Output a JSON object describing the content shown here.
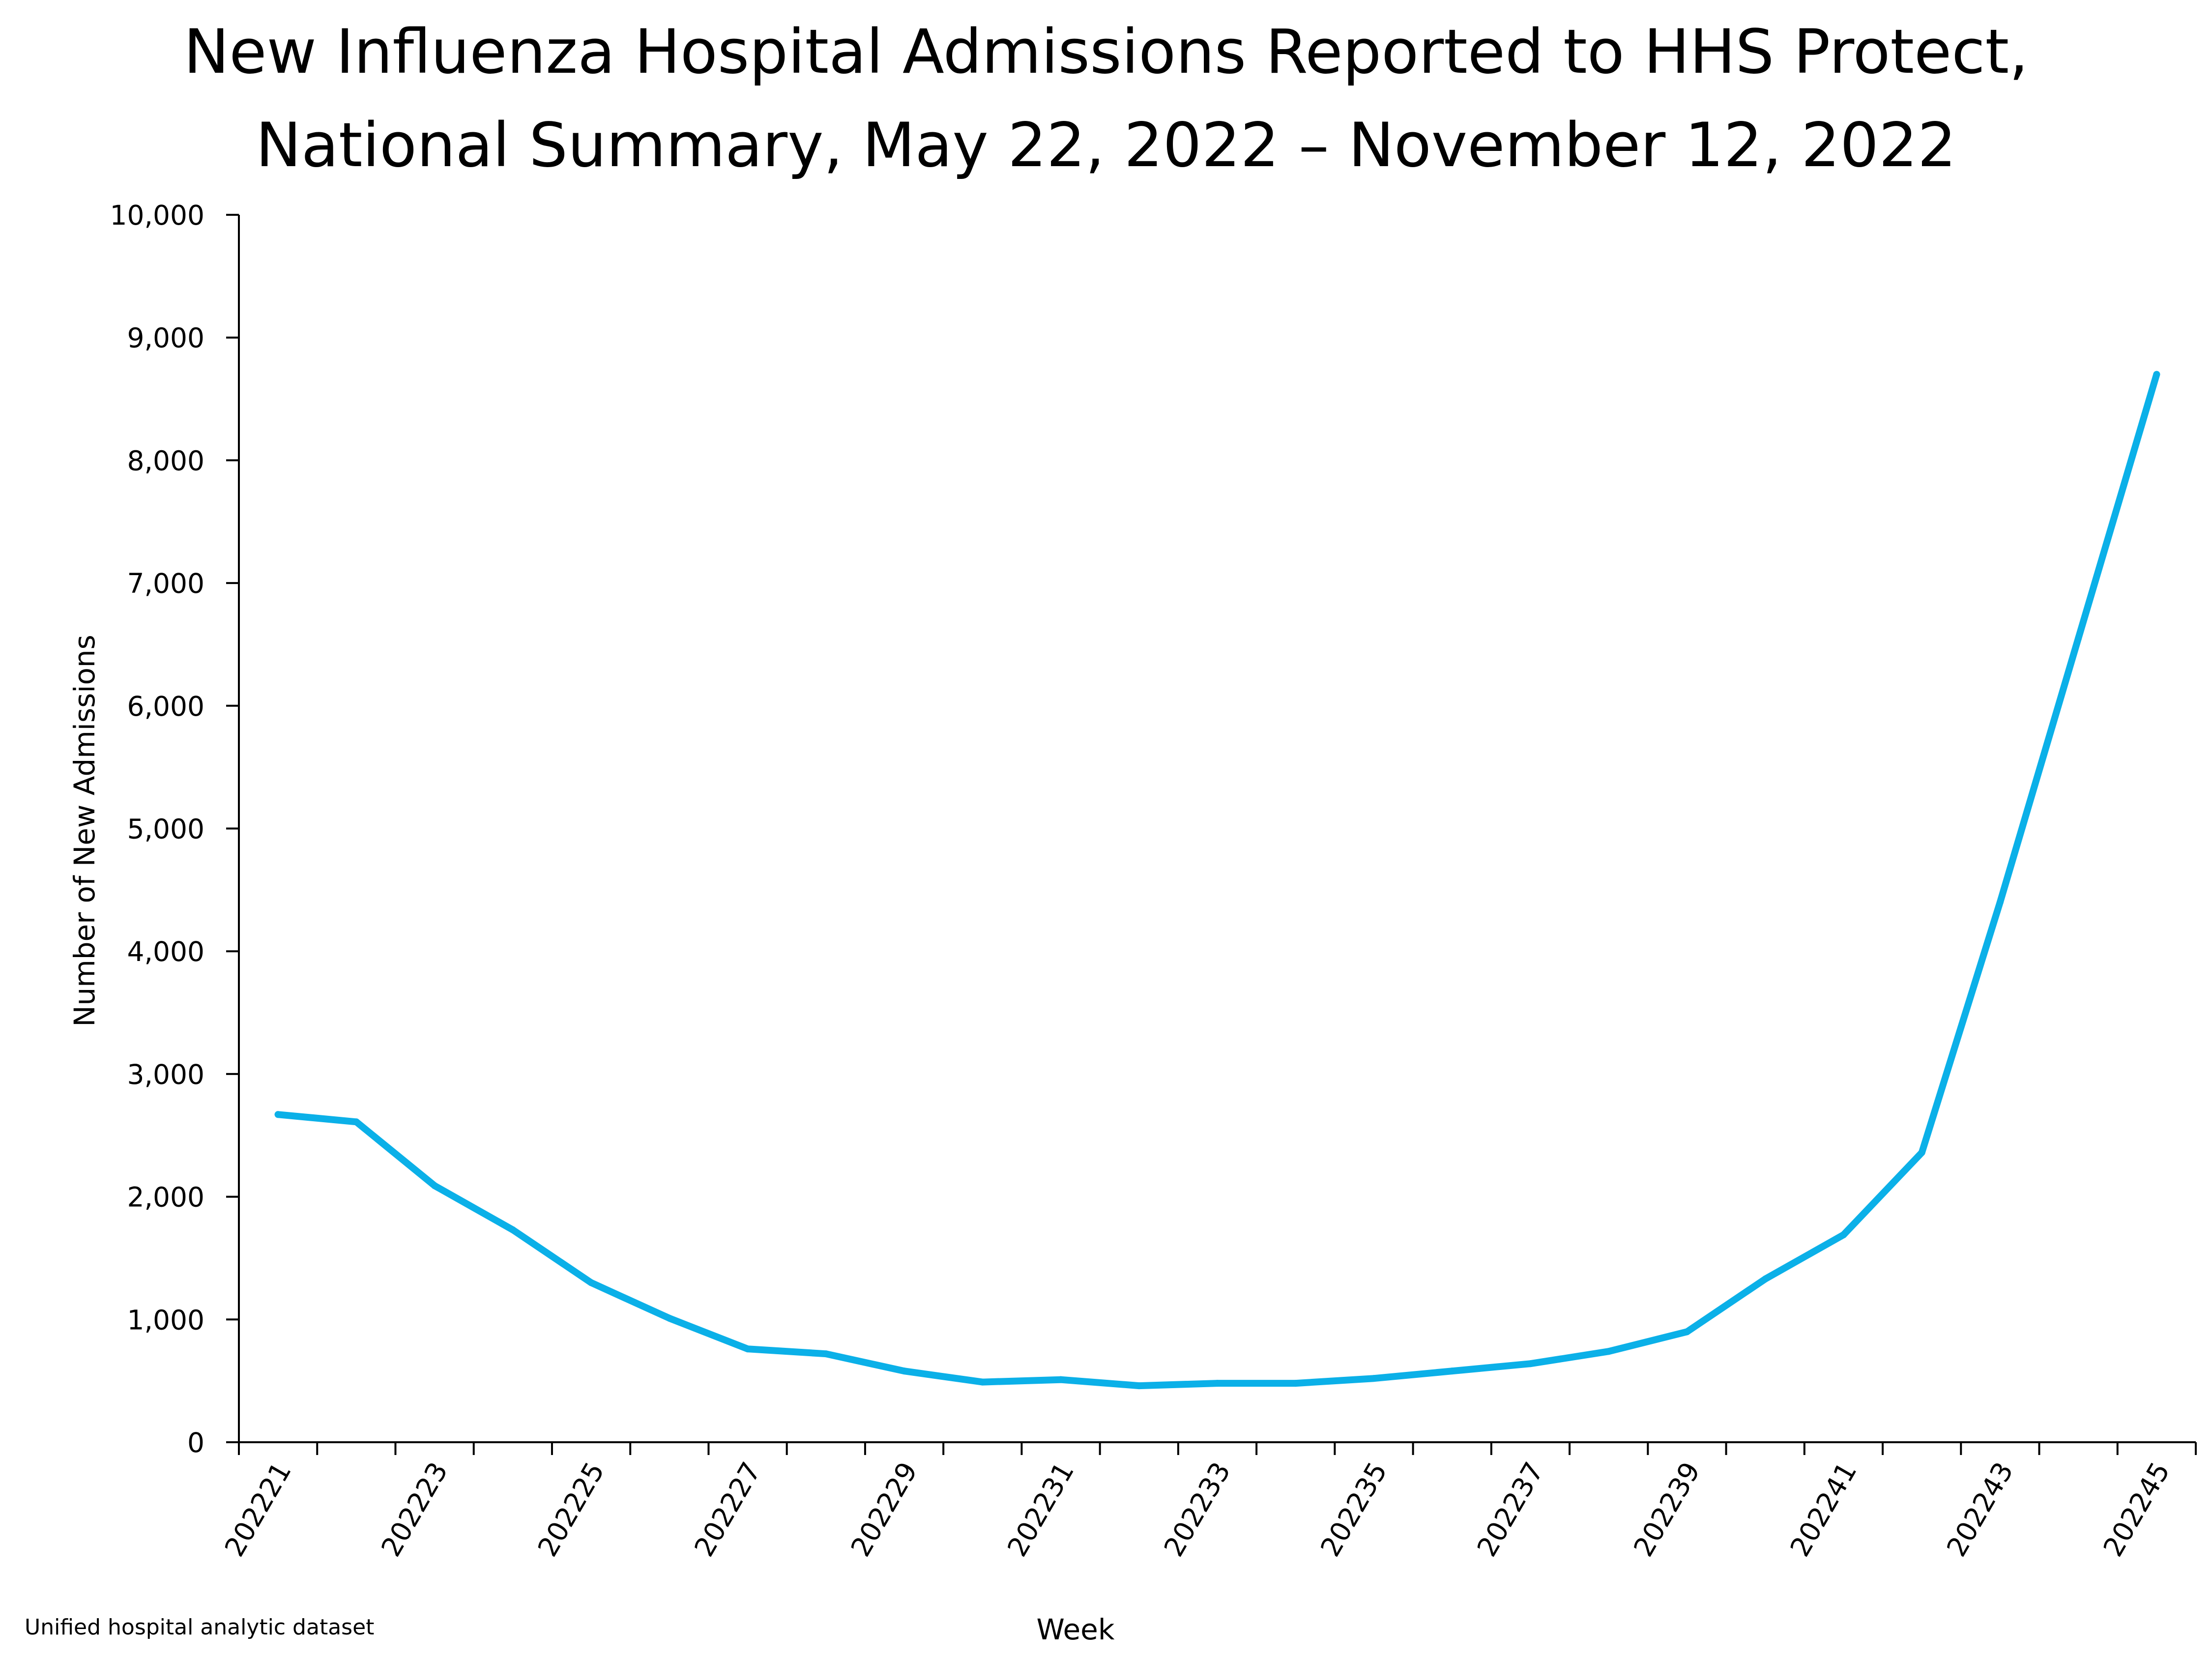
{
  "chart_data": {
    "type": "line",
    "title_lines": [
      "New Influenza Hospital Admissions Reported to HHS Protect,",
      "National Summary, May 22, 2022 – November 12, 2022"
    ],
    "xlabel": "Week",
    "ylabel": "Number of New Admissions",
    "source": "Unified hospital analytic dataset",
    "ylim": [
      0,
      10000
    ],
    "y_ticks": [
      0,
      1000,
      2000,
      3000,
      4000,
      5000,
      6000,
      7000,
      8000,
      9000,
      10000
    ],
    "y_tick_labels": [
      "0",
      "1,000",
      "2,000",
      "3,000",
      "4,000",
      "5,000",
      "6,000",
      "7,000",
      "8,000",
      "9,000",
      "10,000"
    ],
    "x_tick_labels": [
      "202221",
      "202223",
      "202225",
      "202227",
      "202229",
      "202231",
      "202233",
      "202235",
      "202237",
      "202239",
      "202241",
      "202243",
      "202245"
    ],
    "x": [
      "202221",
      "202222",
      "202223",
      "202224",
      "202225",
      "202226",
      "202227",
      "202228",
      "202229",
      "202230",
      "202231",
      "202232",
      "202233",
      "202234",
      "202235",
      "202236",
      "202237",
      "202238",
      "202239",
      "202240",
      "202241",
      "202242",
      "202243",
      "202244",
      "202245"
    ],
    "series": [
      {
        "color": "#0bb0e8",
        "values": [
          2670,
          2610,
          2090,
          1730,
          1300,
          1010,
          760,
          720,
          580,
          490,
          510,
          460,
          480,
          480,
          520,
          580,
          640,
          740,
          900,
          1330,
          1690,
          2360,
          4400,
          6550,
          8700
        ]
      }
    ],
    "grid": false
  }
}
